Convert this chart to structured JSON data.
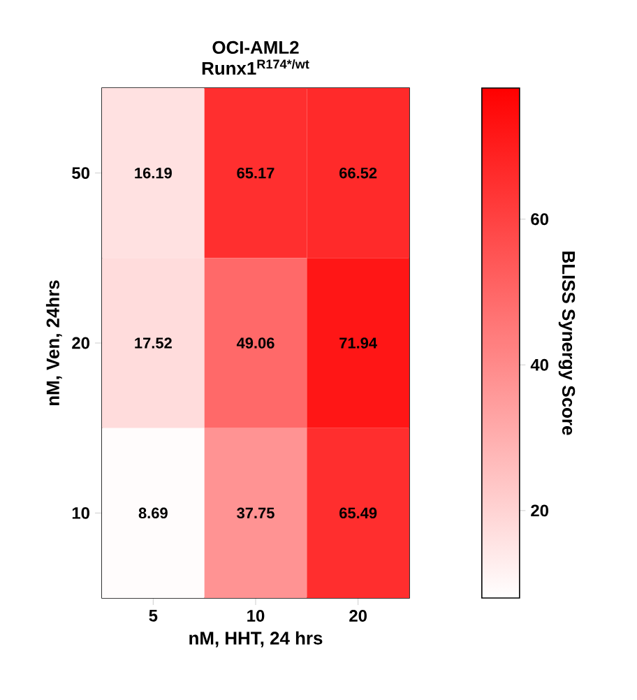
{
  "chart_data": {
    "type": "heatmap",
    "title": "OCI-AML2",
    "subtitle": "Runx1$^{R174*/wt}$",
    "xlabel": "nM, HHT, 24 hrs",
    "ylabel": "nM, Ven, 24hrs",
    "clabel": "BLISS Synergy Score",
    "categories": [
      "5",
      "10",
      "20"
    ],
    "y_categories": [
      "50",
      "20",
      "10"
    ],
    "cells": [
      [
        16.19,
        65.17,
        66.52
      ],
      [
        17.52,
        49.06,
        71.94
      ],
      [
        8.69,
        37.75,
        65.49
      ]
    ],
    "data_labels": true,
    "clim": [
      8,
      78
    ],
    "cticks": [
      20,
      40,
      60
    ],
    "color": "#ff0000"
  }
}
